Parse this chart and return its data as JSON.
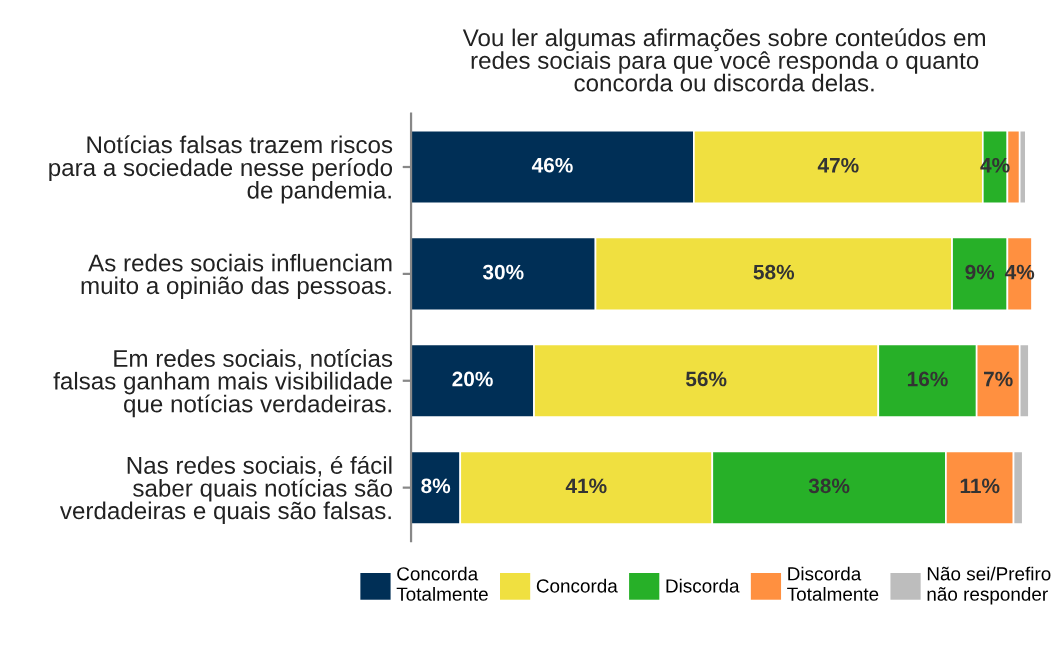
{
  "chart_data": {
    "type": "bar",
    "orientation": "horizontal",
    "stacked": true,
    "title": "Vou ler algumas afirmações sobre conteúdos em\nredes sociais para que você responda o quanto\nconcorda ou discorda delas.",
    "categories": [
      "Notícias falsas trazem riscos\npara a sociedade nesse período\nde pandemia.",
      "As redes sociais influenciam\nmuito a opinião das pessoas.",
      "Em redes sociais, notícias\nfalsas ganham mais visibilidade\nque notícias verdadeiras.",
      "Nas redes sociais, é fácil\nsaber quais notícias são\nverdadeiras e quais são falsas."
    ],
    "series": [
      {
        "name": "Concorda\nTotalmente",
        "color": "#002f56",
        "values": [
          46,
          30,
          20,
          8
        ],
        "value_labels": [
          "46%",
          "30%",
          "20%",
          "8%"
        ]
      },
      {
        "name": "Concorda",
        "color": "#f0e040",
        "values": [
          47,
          58,
          56,
          41
        ],
        "value_labels": [
          "47%",
          "58%",
          "56%",
          "41%"
        ]
      },
      {
        "name": "Discorda",
        "color": "#27b028",
        "values": [
          4,
          9,
          16,
          38
        ],
        "value_labels": [
          "4%",
          "9%",
          "16%",
          "38%"
        ]
      },
      {
        "name": "Discorda\nTotalmente",
        "color": "#ff9040",
        "values": [
          2,
          4,
          7,
          11
        ],
        "value_labels": [
          null,
          "4%",
          "7%",
          "11%"
        ]
      },
      {
        "name": "Não sei/Prefiro\nnão responder",
        "color": "#bdbdbd",
        "values": [
          1,
          null,
          1.5,
          1.5
        ],
        "value_labels": [
          null,
          null,
          null,
          null
        ]
      }
    ],
    "legend": "bottom",
    "grid": false,
    "tick_labels": "y"
  }
}
